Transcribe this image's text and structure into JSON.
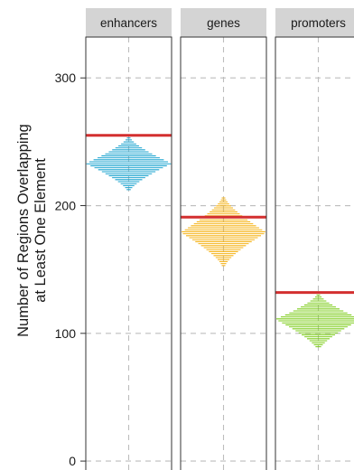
{
  "chart_data": {
    "type": "faceted-dotplot",
    "facets": [
      "enhancers",
      "genes",
      "promoters"
    ],
    "ylabel_lines": [
      "Number of Regions Overlapping",
      "at Least One Element"
    ],
    "yticks": [
      0,
      100,
      200,
      300
    ],
    "ylim": [
      -7,
      332
    ],
    "grid": true,
    "series": [
      {
        "facet": "enhancers",
        "observed": 255,
        "null_min": 212,
        "null_max": 253,
        "null_center": 233,
        "color": "#1aa3cf"
      },
      {
        "facet": "genes",
        "observed": 191,
        "null_min": 153,
        "null_max": 206,
        "null_center": 179,
        "color": "#f5b316"
      },
      {
        "facet": "promoters",
        "observed": 132,
        "null_min": 88,
        "null_max": 130,
        "null_center": 111,
        "color": "#7ccc18"
      }
    ],
    "observed_line_color": "#d32f2f"
  }
}
